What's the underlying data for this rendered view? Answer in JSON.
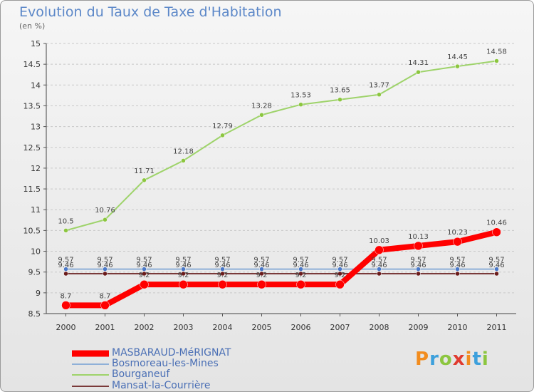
{
  "title": "Evolution du Taux de Taxe d'Habitation",
  "unit_label": "(en %)",
  "logo": {
    "text": "Proxiti",
    "colors": [
      "#f28c1e",
      "#3da0dc",
      "#8cc63f",
      "#e03b2f",
      "#f28c1e",
      "#3da0dc",
      "#8cc63f"
    ]
  },
  "chart_data": {
    "type": "line",
    "title": "Evolution du Taux de Taxe d'Habitation",
    "ylabel": "(en %)",
    "xlabel": "",
    "x": [
      "2000",
      "2001",
      "2002",
      "2003",
      "2004",
      "2005",
      "2006",
      "2007",
      "2008",
      "2009",
      "2010",
      "2011"
    ],
    "ylim": [
      8.5,
      15
    ],
    "yticks": [
      "8.5",
      "9",
      "9.5",
      "10",
      "10.5",
      "11",
      "11.5",
      "12",
      "12.5",
      "13",
      "13.5",
      "14",
      "14.5",
      "15"
    ],
    "grid": "dashed horizontal",
    "legend_position": "bottom-left",
    "series": [
      {
        "name": "MASBARAUD-MéRIGNAT",
        "color": "#ff0000",
        "width": 8,
        "marker": 6,
        "values": [
          8.7,
          8.7,
          9.2,
          9.2,
          9.2,
          9.2,
          9.2,
          9.2,
          10.03,
          10.13,
          10.23,
          10.46
        ],
        "labels": [
          "8.7",
          "8.7",
          "9.2",
          "9.2",
          "9.2",
          "9.2",
          "9.2",
          "9.2",
          "10.03",
          "10.13",
          "10.23",
          "10.46"
        ]
      },
      {
        "name": "Bosmoreau-les-Mines",
        "color": "#8fb0d8",
        "width": 2,
        "marker": 3,
        "values": [
          9.57,
          9.57,
          9.57,
          9.57,
          9.57,
          9.57,
          9.57,
          9.57,
          9.57,
          9.57,
          9.57,
          9.57
        ],
        "labels": [
          "9.57",
          "9.57",
          "9.57",
          "9.57",
          "9.57",
          "9.57",
          "9.57",
          "9.57",
          "9.57",
          "9.57",
          "9.57",
          "9.57"
        ]
      },
      {
        "name": "Bourganeuf",
        "color": "#9ed36a",
        "width": 2,
        "marker": 3,
        "values": [
          10.5,
          10.76,
          11.71,
          12.18,
          12.79,
          13.28,
          13.53,
          13.65,
          13.77,
          14.31,
          14.45,
          14.58
        ],
        "labels": [
          "10.5",
          "10.76",
          "11.71",
          "12.18",
          "12.79",
          "13.28",
          "13.53",
          "13.65",
          "13.77",
          "14.31",
          "14.45",
          "14.58"
        ]
      },
      {
        "name": "Mansat-la-Courrière",
        "color": "#7a3a3a",
        "width": 2,
        "marker": 3,
        "values": [
          9.46,
          9.46,
          9.46,
          9.46,
          9.46,
          9.46,
          9.46,
          9.46,
          9.46,
          9.46,
          9.46,
          9.46
        ],
        "labels": [
          "9.46",
          "9.46",
          "9.46",
          "9.46",
          "9.46",
          "9.46",
          "9.46",
          "9.46",
          "9.46",
          "9.46",
          "9.46",
          "9.46"
        ]
      }
    ]
  }
}
